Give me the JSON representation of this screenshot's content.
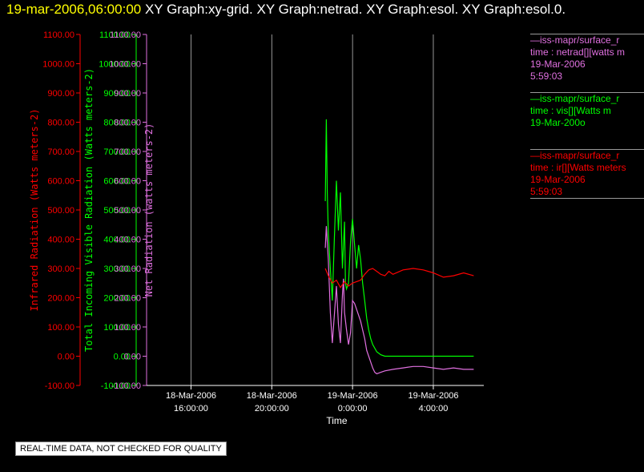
{
  "header": {
    "timestamp": "19-mar-2006,06:00:00",
    "graph_titles": "XY Graph:xy-grid.  XY Graph:netrad.  XY Graph:esol.  XY Graph:esol.0."
  },
  "colors": {
    "ir": "#ff0000",
    "vis": "#00ff00",
    "net": "#e070e0",
    "axis": "#ffffff",
    "grid": "#bbbbbb"
  },
  "legend": [
    {
      "series": "net",
      "lines": [
        "—iss-mapr/surface_r",
        "time : netrad[][watts m",
        "19-Mar-2006",
        "5:59:03"
      ]
    },
    {
      "series": "vis",
      "lines": [
        "—iss-mapr/surface_r",
        "time : vis[][Watts m",
        "19-Mar-200o"
      ]
    },
    {
      "series": "ir",
      "lines": [
        "—iss-mapr/surface_r",
        "time : ir[][Watts meters",
        "19-Mar-2006",
        "5:59:03"
      ]
    }
  ],
  "notice": "REAL-TIME DATA, NOT CHECKED FOR QUALITY",
  "chart_data": {
    "type": "line",
    "xlabel": "Time",
    "x_ticks": [
      {
        "t": -8,
        "line1": "18-Mar-2006",
        "line2": "16:00:00"
      },
      {
        "t": -4,
        "line1": "18-Mar-2006",
        "line2": "20:00:00"
      },
      {
        "t": 0,
        "line1": "19-Mar-2006",
        "line2": "0:00:00"
      },
      {
        "t": 4,
        "line1": "19-Mar-2006",
        "line2": "4:00:00"
      }
    ],
    "xlim": [
      -10.2,
      6.5
    ],
    "y_axes": [
      {
        "key": "ir",
        "label": "Infrared Radiation (Watts meters-2)",
        "ylim": [
          -100,
          1100
        ]
      },
      {
        "key": "vis",
        "label": "Total Incoming Visible Radiation (Watts meters-2)",
        "ylim": [
          -100,
          1100
        ]
      },
      {
        "key": "net",
        "label": "Net Radiation (watts meters-2)",
        "ylim": [
          -100,
          1100
        ]
      }
    ],
    "y_ticks": [
      "-100.00",
      "0.00",
      "100.00",
      "200.00",
      "300.00",
      "400.00",
      "500.00",
      "600.00",
      "700.00",
      "800.00",
      "900.00",
      "1000.00",
      "1100.00"
    ],
    "grid": true,
    "series": [
      {
        "key": "vis",
        "x": [
          -1.35,
          -1.3,
          -1.25,
          -1.2,
          -1.1,
          -1.0,
          -0.9,
          -0.8,
          -0.7,
          -0.6,
          -0.5,
          -0.4,
          -0.35,
          -0.3,
          -0.2,
          -0.1,
          0.0,
          0.1,
          0.2,
          0.3,
          0.4,
          0.5,
          0.6,
          0.7,
          0.8,
          0.9,
          1.0,
          1.2,
          1.4,
          1.6,
          2.0,
          3.0,
          4.0,
          5.0,
          6.0
        ],
        "y": [
          530,
          810,
          560,
          420,
          300,
          190,
          400,
          600,
          430,
          560,
          300,
          460,
          250,
          230,
          250,
          390,
          470,
          380,
          300,
          380,
          330,
          250,
          190,
          130,
          90,
          60,
          40,
          15,
          5,
          0,
          0,
          0,
          0,
          0,
          0
        ]
      },
      {
        "key": "net",
        "x": [
          -1.35,
          -1.3,
          -1.2,
          -1.1,
          -1.0,
          -0.9,
          -0.8,
          -0.7,
          -0.6,
          -0.5,
          -0.45,
          -0.4,
          -0.3,
          -0.2,
          -0.1,
          0.0,
          0.1,
          0.2,
          0.3,
          0.4,
          0.5,
          0.6,
          0.7,
          0.8,
          0.9,
          1.0,
          1.1,
          1.2,
          1.4,
          1.6,
          2.0,
          2.5,
          3.0,
          3.5,
          4.0,
          4.5,
          5.0,
          5.5,
          6.0
        ],
        "y": [
          370,
          445,
          330,
          150,
          45,
          140,
          240,
          110,
          45,
          210,
          265,
          150,
          90,
          40,
          80,
          190,
          180,
          160,
          140,
          120,
          90,
          60,
          20,
          0,
          -20,
          -40,
          -55,
          -60,
          -55,
          -50,
          -45,
          -40,
          -35,
          -35,
          -40,
          -45,
          -40,
          -45,
          -45
        ]
      },
      {
        "key": "ir",
        "x": [
          -1.35,
          -1.2,
          -1.0,
          -0.8,
          -0.6,
          -0.4,
          -0.2,
          0.0,
          0.2,
          0.4,
          0.6,
          0.8,
          1.0,
          1.2,
          1.4,
          1.6,
          1.8,
          2.0,
          2.5,
          3.0,
          3.5,
          4.0,
          4.5,
          5.0,
          5.5,
          6.0
        ],
        "y": [
          300,
          275,
          250,
          260,
          235,
          255,
          240,
          250,
          255,
          260,
          280,
          295,
          300,
          290,
          280,
          275,
          290,
          280,
          295,
          300,
          295,
          285,
          270,
          275,
          285,
          275
        ]
      }
    ]
  }
}
